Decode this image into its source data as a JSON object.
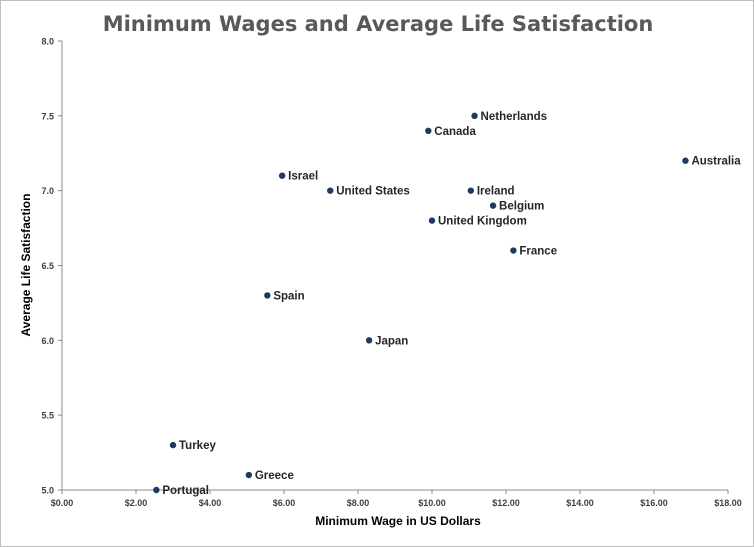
{
  "chart_data": {
    "type": "scatter",
    "title": "Minimum Wages and Average Life Satisfaction",
    "xlabel": "Minimum Wage in US Dollars",
    "ylabel": "Average Life Satisfaction",
    "xlim": [
      0,
      18
    ],
    "ylim": [
      5.0,
      8.0
    ],
    "x_ticks": [
      0,
      2,
      4,
      6,
      8,
      10,
      12,
      14,
      16,
      18
    ],
    "x_tick_labels": [
      "$0.00",
      "$2.00",
      "$4.00",
      "$6.00",
      "$8.00",
      "$10.00",
      "$12.00",
      "$14.00",
      "$16.00",
      "$18.00"
    ],
    "y_ticks": [
      5.0,
      5.5,
      6.0,
      6.5,
      7.0,
      7.5,
      8.0
    ],
    "y_tick_labels": [
      "5.0",
      "5.5",
      "6.0",
      "6.5",
      "7.0",
      "7.5",
      "8.0"
    ],
    "grid": false,
    "legend": "none",
    "marker_color": "#1f3864",
    "points": [
      {
        "label": "Portugal",
        "x": 2.55,
        "y": 5.0
      },
      {
        "label": "Turkey",
        "x": 3.0,
        "y": 5.3
      },
      {
        "label": "Greece",
        "x": 5.05,
        "y": 5.1
      },
      {
        "label": "Spain",
        "x": 5.55,
        "y": 6.3
      },
      {
        "label": "Israel",
        "x": 5.95,
        "y": 7.1
      },
      {
        "label": "United States",
        "x": 7.25,
        "y": 7.0
      },
      {
        "label": "Japan",
        "x": 8.3,
        "y": 6.0
      },
      {
        "label": "Canada",
        "x": 9.9,
        "y": 7.4
      },
      {
        "label": "United Kingdom",
        "x": 10.0,
        "y": 6.8
      },
      {
        "label": "Ireland",
        "x": 11.05,
        "y": 7.0
      },
      {
        "label": "Netherlands",
        "x": 11.15,
        "y": 7.5
      },
      {
        "label": "Belgium",
        "x": 11.65,
        "y": 6.9
      },
      {
        "label": "France",
        "x": 12.2,
        "y": 6.6
      },
      {
        "label": "Australia",
        "x": 16.85,
        "y": 7.2
      }
    ]
  }
}
